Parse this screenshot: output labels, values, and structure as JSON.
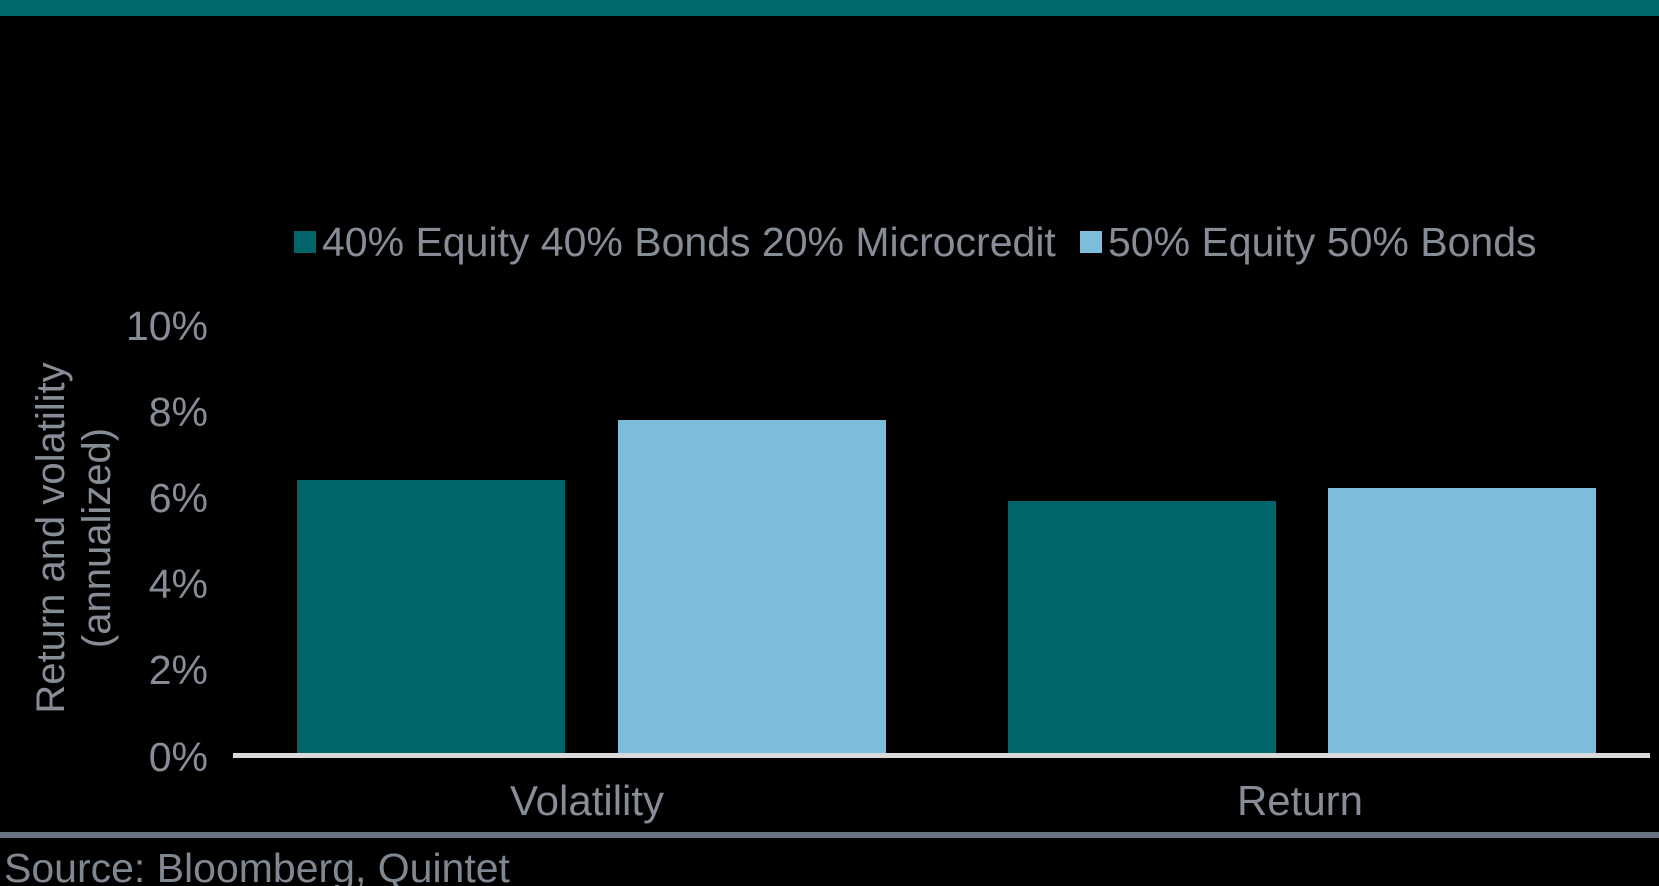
{
  "page": {
    "background": "#000000",
    "accent_color": "#016a6e",
    "source_label": "Source: Bloomberg, Quintet"
  },
  "chart_data": {
    "type": "bar",
    "title": "",
    "categories": [
      "Volatility",
      "Return"
    ],
    "series": [
      {
        "name": "40% Equity 40% Bonds 20% Microcredit",
        "color": "#016569",
        "values": [
          6.4,
          5.9
        ]
      },
      {
        "name": "50% Equity 50% Bonds",
        "color": "#7cbddc",
        "values": [
          7.8,
          6.2
        ]
      }
    ],
    "ylabel_line1": "Return and volatility",
    "ylabel_line2": "(annualized)",
    "yticks": [
      "10%",
      "8%",
      "6%",
      "4%",
      "2%",
      "0%"
    ],
    "ylim": [
      0,
      10
    ],
    "ytick_step": 2,
    "grid": false,
    "legend_position": "top",
    "axis_line_color": "#d9d9d9",
    "text_color": "#868d97"
  }
}
